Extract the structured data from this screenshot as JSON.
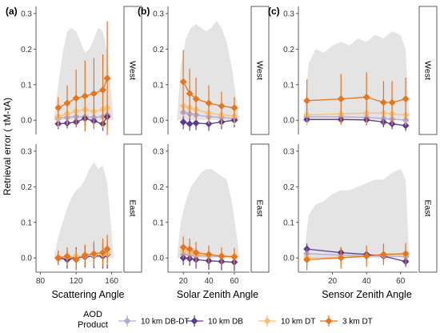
{
  "figure": {
    "ylabel": "Retrieval error ( τM-τA)",
    "legend_title": [
      "AOD",
      "Product"
    ]
  },
  "colors": {
    "DB-DT": "#b3aad4",
    "DB": "#5b3c91",
    "DT": "#f6c07a",
    "3kmDT": "#e8741c",
    "density": "#e4e4e4",
    "strip_border": "#333333"
  },
  "legend": [
    {
      "key": "DB-DT",
      "label": "10 km DB-DT"
    },
    {
      "key": "DB",
      "label": "10 km DB"
    },
    {
      "key": "DT",
      "label": "10 km DT"
    },
    {
      "key": "3kmDT",
      "label": "3 km DT"
    }
  ],
  "chart_data": [
    {
      "type": "line",
      "panel": "(a)",
      "xlabel": "Scattering Angle",
      "xlim": [
        75,
        172
      ],
      "xticks": [
        80,
        120,
        160
      ],
      "ylim": [
        -0.04,
        0.32
      ],
      "yticks": [
        0.0,
        0.1,
        0.2,
        0.3
      ],
      "rows": [
        {
          "strip": "West",
          "density": {
            "x": [
              95,
              100,
              105,
              110,
              115,
              120,
              125,
              130,
              135,
              140,
              145,
              150,
              155,
              160,
              162
            ],
            "y": [
              0.0,
              0.1,
              0.19,
              0.25,
              0.26,
              0.25,
              0.22,
              0.19,
              0.2,
              0.23,
              0.26,
              0.25,
              0.19,
              0.06,
              0.0
            ]
          },
          "series": [
            {
              "key": "DB-DT",
              "x": [
                100,
                110,
                120,
                130,
                140,
                150,
                155
              ],
              "y": [
                0.005,
                0.008,
                0.01,
                0.01,
                0.008,
                0.01,
                0.015
              ],
              "err": [
                0.02,
                0.02,
                0.02,
                0.02,
                0.02,
                0.02,
                0.02
              ]
            },
            {
              "key": "DB",
              "x": [
                100,
                110,
                120,
                130,
                140,
                150,
                155
              ],
              "y": [
                -0.01,
                -0.008,
                -0.005,
                0.005,
                -0.002,
                -0.01,
                0.01
              ],
              "err": [
                0.015,
                0.015,
                0.015,
                0.02,
                0.02,
                0.02,
                0.02
              ]
            },
            {
              "key": "DT",
              "x": [
                100,
                110,
                120,
                130,
                140,
                150,
                155
              ],
              "y": [
                0.01,
                0.018,
                0.025,
                0.03,
                0.025,
                0.03,
                0.035
              ],
              "err": [
                0.03,
                0.03,
                0.035,
                0.04,
                0.04,
                0.05,
                0.06
              ]
            },
            {
              "key": "3kmDT",
              "x": [
                100,
                110,
                120,
                130,
                140,
                150,
                155
              ],
              "y": [
                0.035,
                0.048,
                0.062,
                0.068,
                0.075,
                0.085,
                0.118
              ],
              "err": [
                0.03,
                0.05,
                0.08,
                0.1,
                0.1,
                0.1,
                0.16
              ]
            }
          ]
        },
        {
          "strip": "East",
          "density": {
            "x": [
              95,
              100,
              105,
              110,
              115,
              120,
              125,
              130,
              135,
              140,
              145,
              150,
              155,
              160,
              162
            ],
            "y": [
              0.0,
              0.06,
              0.1,
              0.14,
              0.17,
              0.19,
              0.2,
              0.22,
              0.25,
              0.27,
              0.25,
              0.26,
              0.21,
              0.07,
              0.0
            ]
          },
          "series": [
            {
              "key": "DB-DT",
              "x": [
                100,
                110,
                120,
                130,
                140,
                150,
                155
              ],
              "y": [
                -0.002,
                0.0,
                0.002,
                0.004,
                0.006,
                0.008,
                0.012
              ],
              "err": [
                0.015,
                0.015,
                0.02,
                0.02,
                0.02,
                0.02,
                0.02
              ]
            },
            {
              "key": "DB",
              "x": [
                100,
                110,
                120,
                130,
                140,
                150,
                155
              ],
              "y": [
                0.0,
                -0.005,
                0.0,
                0.003,
                0.006,
                0.005,
                0.01
              ],
              "err": [
                0.02,
                0.025,
                0.03,
                0.03,
                0.035,
                0.035,
                0.04
              ]
            },
            {
              "key": "DT",
              "x": [
                100,
                110,
                120,
                130,
                140,
                150,
                155
              ],
              "y": [
                0.002,
                0.003,
                0.005,
                0.006,
                0.008,
                0.01,
                0.012
              ],
              "err": [
                0.015,
                0.02,
                0.02,
                0.02,
                0.025,
                0.025,
                0.03
              ]
            },
            {
              "key": "3kmDT",
              "x": [
                100,
                110,
                120,
                130,
                140,
                150,
                155
              ],
              "y": [
                0.0,
                0.005,
                -0.005,
                0.008,
                0.012,
                0.015,
                0.025
              ],
              "err": [
                0.02,
                0.025,
                0.03,
                0.03,
                0.035,
                0.04,
                0.04
              ]
            }
          ]
        }
      ]
    },
    {
      "type": "line",
      "panel": "(b)",
      "xlabel": "Solar Zenith Angle",
      "xlim": [
        8,
        72
      ],
      "xticks": [
        20,
        40,
        60
      ],
      "ylim": [
        -0.04,
        0.32
      ],
      "yticks": [
        0.0,
        0.1,
        0.2,
        0.3
      ],
      "rows": [
        {
          "strip": "West",
          "density": {
            "x": [
              15,
              18,
              22,
              26,
              30,
              34,
              38,
              42,
              46,
              50,
              54,
              58,
              62,
              64
            ],
            "y": [
              0.0,
              0.15,
              0.23,
              0.26,
              0.27,
              0.26,
              0.25,
              0.26,
              0.28,
              0.26,
              0.22,
              0.15,
              0.05,
              0.0
            ]
          },
          "series": [
            {
              "key": "DB-DT",
              "x": [
                20,
                25,
                30,
                40,
                50,
                60
              ],
              "y": [
                0.022,
                0.018,
                0.015,
                0.01,
                0.008,
                0.005
              ],
              "err": [
                0.02,
                0.02,
                0.02,
                0.02,
                0.02,
                0.02
              ]
            },
            {
              "key": "DB",
              "x": [
                20,
                25,
                30,
                40,
                50,
                60
              ],
              "y": [
                -0.005,
                -0.01,
                -0.008,
                -0.01,
                -0.005,
                0.0
              ],
              "err": [
                0.02,
                0.02,
                0.02,
                0.02,
                0.02,
                0.02
              ]
            },
            {
              "key": "DT",
              "x": [
                20,
                25,
                30,
                40,
                50,
                60
              ],
              "y": [
                0.04,
                0.035,
                0.03,
                0.02,
                0.015,
                0.012
              ],
              "err": [
                0.03,
                0.03,
                0.03,
                0.03,
                0.03,
                0.025
              ]
            },
            {
              "key": "3kmDT",
              "x": [
                20,
                25,
                30,
                40,
                50,
                60
              ],
              "y": [
                0.108,
                0.075,
                0.06,
                0.048,
                0.04,
                0.035
              ],
              "err": [
                0.09,
                0.07,
                0.06,
                0.05,
                0.04,
                0.03
              ]
            }
          ]
        },
        {
          "strip": "East",
          "density": {
            "x": [
              15,
              18,
              22,
              26,
              30,
              34,
              38,
              42,
              46,
              50,
              54,
              58,
              62,
              64
            ],
            "y": [
              0.0,
              0.1,
              0.16,
              0.2,
              0.22,
              0.24,
              0.25,
              0.25,
              0.24,
              0.23,
              0.22,
              0.16,
              0.06,
              0.0
            ]
          },
          "series": [
            {
              "key": "DB-DT",
              "x": [
                20,
                25,
                30,
                40,
                50,
                60
              ],
              "y": [
                0.01,
                0.008,
                0.006,
                0.005,
                0.004,
                0.003
              ],
              "err": [
                0.015,
                0.015,
                0.015,
                0.015,
                0.015,
                0.015
              ]
            },
            {
              "key": "DB",
              "x": [
                20,
                25,
                30,
                40,
                50,
                60
              ],
              "y": [
                0.0,
                -0.002,
                -0.005,
                -0.008,
                -0.01,
                -0.012
              ],
              "err": [
                0.02,
                0.02,
                0.025,
                0.025,
                0.025,
                0.025
              ]
            },
            {
              "key": "DT",
              "x": [
                20,
                25,
                30,
                40,
                50,
                60
              ],
              "y": [
                0.02,
                0.015,
                0.01,
                0.008,
                0.006,
                0.005
              ],
              "err": [
                0.02,
                0.02,
                0.02,
                0.02,
                0.02,
                0.02
              ]
            },
            {
              "key": "3kmDT",
              "x": [
                20,
                25,
                30,
                40,
                50,
                60
              ],
              "y": [
                0.03,
                0.025,
                0.015,
                0.01,
                0.005,
                0.003
              ],
              "err": [
                0.03,
                0.03,
                0.03,
                0.025,
                0.025,
                0.025
              ]
            }
          ]
        }
      ]
    },
    {
      "type": "line",
      "panel": "(c)",
      "xlabel": "Sensor Zenith Angle",
      "xlim": [
        0,
        70
      ],
      "xticks": [
        20,
        40,
        60
      ],
      "ylim": [
        -0.04,
        0.32
      ],
      "yticks": [
        0.0,
        0.1,
        0.2,
        0.3
      ],
      "rows": [
        {
          "strip": "West",
          "density": {
            "x": [
              3,
              6,
              10,
              15,
              20,
              25,
              30,
              35,
              40,
              45,
              50,
              55,
              60,
              63,
              65
            ],
            "y": [
              0.0,
              0.16,
              0.2,
              0.19,
              0.21,
              0.22,
              0.21,
              0.23,
              0.22,
              0.24,
              0.23,
              0.25,
              0.24,
              0.2,
              0.0
            ]
          },
          "series": [
            {
              "key": "DB-DT",
              "x": [
                5,
                25,
                40,
                50,
                55,
                63
              ],
              "y": [
                0.01,
                0.01,
                0.008,
                0.005,
                0.003,
                0.0
              ],
              "err": [
                0.015,
                0.015,
                0.015,
                0.015,
                0.015,
                0.015
              ]
            },
            {
              "key": "DB",
              "x": [
                5,
                25,
                40,
                50,
                55,
                63
              ],
              "y": [
                0.002,
                0.002,
                0.001,
                -0.005,
                -0.01,
                -0.015
              ],
              "err": [
                0.015,
                0.015,
                0.015,
                0.015,
                0.015,
                0.015
              ]
            },
            {
              "key": "DT",
              "x": [
                5,
                25,
                40,
                50,
                55,
                63
              ],
              "y": [
                0.015,
                0.018,
                0.02,
                0.02,
                0.018,
                0.015
              ],
              "err": [
                0.03,
                0.03,
                0.03,
                0.03,
                0.03,
                0.03
              ]
            },
            {
              "key": "3kmDT",
              "x": [
                5,
                25,
                40,
                50,
                55,
                63
              ],
              "y": [
                0.055,
                0.06,
                0.065,
                0.05,
                0.05,
                0.06
              ],
              "err": [
                0.06,
                0.07,
                0.07,
                0.06,
                0.06,
                0.06
              ]
            }
          ]
        },
        {
          "strip": "East",
          "density": {
            "x": [
              3,
              6,
              10,
              15,
              20,
              25,
              30,
              35,
              40,
              45,
              50,
              55,
              60,
              63,
              65
            ],
            "y": [
              0.0,
              0.12,
              0.15,
              0.16,
              0.18,
              0.19,
              0.19,
              0.2,
              0.21,
              0.22,
              0.22,
              0.24,
              0.25,
              0.22,
              0.0
            ]
          },
          "series": [
            {
              "key": "DB-DT",
              "x": [
                5,
                25,
                40,
                50,
                63
              ],
              "y": [
                0.012,
                0.008,
                0.006,
                0.005,
                0.004
              ],
              "err": [
                0.015,
                0.015,
                0.015,
                0.015,
                0.015
              ]
            },
            {
              "key": "DB",
              "x": [
                5,
                25,
                40,
                50,
                63
              ],
              "y": [
                0.025,
                0.015,
                0.01,
                0.005,
                -0.01
              ],
              "err": [
                0.015,
                0.015,
                0.015,
                0.015,
                0.015
              ]
            },
            {
              "key": "DT",
              "x": [
                5,
                25,
                40,
                50,
                63
              ],
              "y": [
                0.0,
                0.002,
                0.005,
                0.008,
                0.01
              ],
              "err": [
                0.02,
                0.02,
                0.02,
                0.02,
                0.02
              ]
            },
            {
              "key": "3kmDT",
              "x": [
                5,
                25,
                40,
                50,
                63
              ],
              "y": [
                -0.005,
                0.0,
                0.005,
                0.01,
                0.012
              ],
              "err": [
                0.03,
                0.03,
                0.03,
                0.03,
                0.03
              ]
            }
          ]
        }
      ]
    }
  ]
}
